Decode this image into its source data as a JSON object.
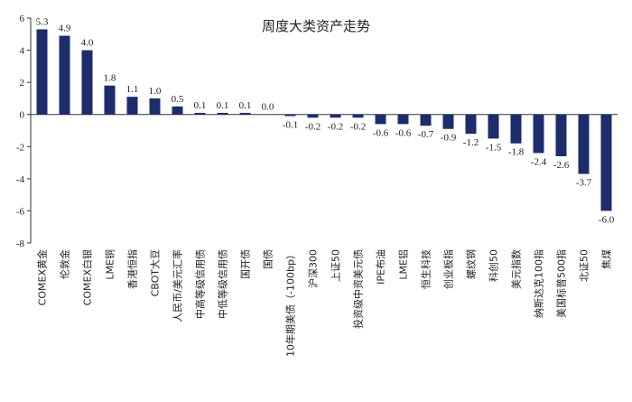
{
  "chart_data": {
    "type": "bar",
    "title": "周度大类资产走势",
    "xlabel": "",
    "ylabel": "",
    "ylim": [
      -8,
      6
    ],
    "yticks": [
      6,
      4,
      2,
      0,
      -2,
      -4,
      -6,
      -8
    ],
    "grid": false,
    "legend": "none",
    "bar_color": "#1d2d6b",
    "categories": [
      "COMEX黄金",
      "伦敦金",
      "COMEX白银",
      "LME铜",
      "香港恒指",
      "CBOT大豆",
      "人民币/美元汇率",
      "中高等级信用债",
      "中低等级信用债",
      "国开债",
      "国债",
      "10年期美债（-100bp）",
      "沪深300",
      "上证50",
      "投资级中资美元债",
      "IPE布油",
      "LME铝",
      "恒生科技",
      "创业板指",
      "螺纹钢",
      "科创50",
      "美元指数",
      "纳斯达克100指",
      "美国标普500指",
      "北证50",
      "焦煤"
    ],
    "values": [
      5.3,
      4.9,
      4.0,
      1.8,
      1.1,
      1.0,
      0.5,
      0.1,
      0.1,
      0.1,
      0.0,
      -0.1,
      -0.2,
      -0.2,
      -0.2,
      -0.6,
      -0.6,
      -0.7,
      -0.9,
      -1.2,
      -1.5,
      -1.8,
      -2.4,
      -2.6,
      -3.7,
      -6.0
    ],
    "value_labels": [
      "5.3",
      "4.9",
      "4.0",
      "1.8",
      "1.1",
      "1.0",
      "0.5",
      "0.1",
      "0.1",
      "0.1",
      "0.0",
      "-0.1",
      "-0.2",
      "-0.2",
      "-0.2",
      "-0.6",
      "-0.6",
      "-0.7",
      "-0.9",
      "-1.2",
      "-1.5",
      "-1.8",
      "-2.4",
      "-2.6",
      "-3.7",
      "-6.0"
    ]
  }
}
